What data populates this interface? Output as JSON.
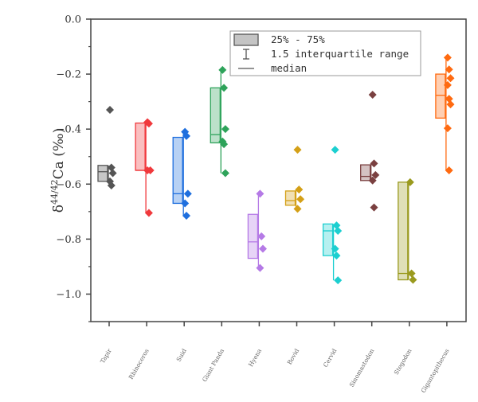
{
  "chart_data": {
    "type": "box",
    "title": "",
    "xlabel": "",
    "ylabel": {
      "delta": "δ",
      "sup": "44/42",
      "rest": "Ca (‰)"
    },
    "ylim": [
      -1.1,
      0.0
    ],
    "yticks": [
      0.0,
      -0.2,
      -0.4,
      -0.6,
      -0.8,
      -1.0
    ],
    "ytick_labels": [
      "0.0",
      "−0.2",
      "−0.4",
      "−0.6",
      "−0.8",
      "−1.0"
    ],
    "grid": false,
    "legend": {
      "placement": "top-right",
      "entries": [
        {
          "symbol": "box",
          "label": "25% - 75%"
        },
        {
          "symbol": "whisker",
          "label": "1.5 interquartile range"
        },
        {
          "symbol": "line",
          "label": "median"
        }
      ]
    },
    "categories": [
      "Tapir",
      "Rhinoceros",
      "Suid",
      "Giant Panda",
      "Hyena",
      "Bovid",
      "Cervid",
      "Sinomastodon",
      "Stegodon",
      "Gigantopithecus"
    ],
    "series": [
      {
        "name": "Tapir",
        "color": "#555555",
        "q1": -0.59,
        "median": -0.555,
        "q3": -0.532,
        "whisker_low": -0.59,
        "whisker_high": -0.532,
        "points": [
          -0.33,
          -0.54,
          -0.56,
          -0.59,
          -0.605
        ]
      },
      {
        "name": "Rhinoceros",
        "color": "#f0393c",
        "q1": -0.55,
        "median": -0.55,
        "q3": -0.378,
        "whisker_low": -0.705,
        "whisker_high": -0.375,
        "points": [
          -0.375,
          -0.38,
          -0.55,
          -0.55,
          -0.705
        ]
      },
      {
        "name": "Suid",
        "color": "#1f6fde",
        "q1": -0.67,
        "median": -0.635,
        "q3": -0.43,
        "whisker_low": -0.715,
        "whisker_high": -0.41,
        "points": [
          -0.41,
          -0.425,
          -0.635,
          -0.67,
          -0.715
        ]
      },
      {
        "name": "Giant Panda",
        "color": "#2ea35a",
        "q1": -0.45,
        "median": -0.42,
        "q3": -0.25,
        "whisker_low": -0.56,
        "whisker_high": -0.185,
        "points": [
          -0.185,
          -0.25,
          -0.4,
          -0.445,
          -0.455,
          -0.56
        ]
      },
      {
        "name": "Hyena",
        "color": "#b57ae6",
        "q1": -0.87,
        "median": -0.81,
        "q3": -0.71,
        "whisker_low": -0.905,
        "whisker_high": -0.635,
        "points": [
          -0.635,
          -0.79,
          -0.835,
          -0.905
        ]
      },
      {
        "name": "Bovid",
        "color": "#d4a017",
        "q1": -0.677,
        "median": -0.66,
        "q3": -0.625,
        "whisker_low": -0.69,
        "whisker_high": -0.62,
        "points": [
          -0.475,
          -0.62,
          -0.655,
          -0.69
        ]
      },
      {
        "name": "Cervid",
        "color": "#1ccfd0",
        "q1": -0.86,
        "median": -0.77,
        "q3": -0.745,
        "whisker_low": -0.95,
        "whisker_high": -0.745,
        "points": [
          -0.475,
          -0.75,
          -0.77,
          -0.835,
          -0.86,
          -0.95
        ]
      },
      {
        "name": "Sinomastodon",
        "color": "#7a4040",
        "q1": -0.587,
        "median": -0.572,
        "q3": -0.53,
        "whisker_low": -0.587,
        "whisker_high": -0.525,
        "points": [
          -0.275,
          -0.525,
          -0.567,
          -0.587,
          -0.685
        ]
      },
      {
        "name": "Stegodon",
        "color": "#9a9a1e",
        "q1": -0.948,
        "median": -0.925,
        "q3": -0.593,
        "whisker_low": -0.948,
        "whisker_high": -0.593,
        "points": [
          -0.593,
          -0.925,
          -0.948
        ]
      },
      {
        "name": "Gigantopithecus",
        "color": "#ff6a10",
        "q1": -0.36,
        "median": -0.277,
        "q3": -0.2,
        "whisker_low": -0.55,
        "whisker_high": -0.14,
        "points": [
          -0.14,
          -0.183,
          -0.215,
          -0.24,
          -0.29,
          -0.31,
          -0.397,
          -0.55
        ]
      }
    ]
  }
}
